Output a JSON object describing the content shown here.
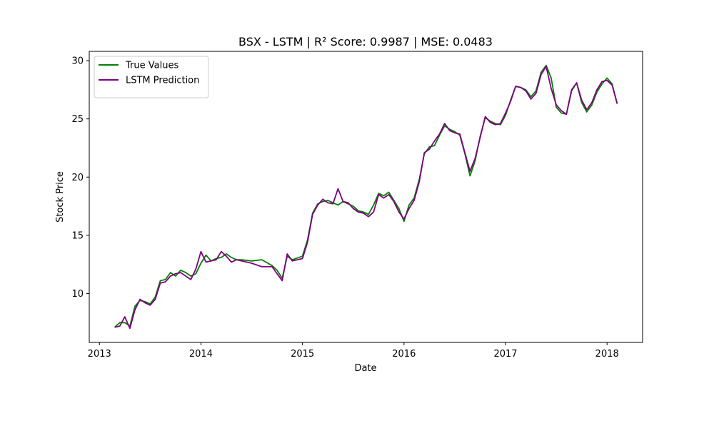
{
  "chart_data": {
    "type": "line",
    "title": "BSX - LSTM | R² Score: 0.9987 | MSE: 0.0483",
    "xlabel": "Date",
    "ylabel": "Stock Price",
    "xlim": [
      2012.9,
      2018.35
    ],
    "ylim": [
      5.8,
      30.8
    ],
    "xticks": [
      2013,
      2014,
      2015,
      2016,
      2017,
      2018
    ],
    "yticks": [
      10,
      15,
      20,
      25,
      30
    ],
    "grid": false,
    "legend_position": "top-left",
    "series": [
      {
        "name": "True Values",
        "color": "#008000",
        "x": [
          2013.15,
          2013.2,
          2013.25,
          2013.3,
          2013.35,
          2013.4,
          2013.45,
          2013.5,
          2013.55,
          2013.6,
          2013.65,
          2013.7,
          2013.75,
          2013.8,
          2013.85,
          2013.9,
          2013.95,
          2014.0,
          2014.05,
          2014.1,
          2014.15,
          2014.2,
          2014.25,
          2014.3,
          2014.35,
          2014.4,
          2014.5,
          2014.6,
          2014.7,
          2014.75,
          2014.8,
          2014.85,
          2014.9,
          2015.0,
          2015.05,
          2015.1,
          2015.15,
          2015.2,
          2015.25,
          2015.3,
          2015.35,
          2015.4,
          2015.45,
          2015.5,
          2015.55,
          2015.6,
          2015.65,
          2015.7,
          2015.75,
          2015.8,
          2015.85,
          2015.9,
          2015.95,
          2016.0,
          2016.05,
          2016.1,
          2016.15,
          2016.2,
          2016.25,
          2016.3,
          2016.35,
          2016.4,
          2016.45,
          2016.5,
          2016.55,
          2016.6,
          2016.65,
          2016.7,
          2016.75,
          2016.8,
          2016.85,
          2016.9,
          2016.95,
          2017.0,
          2017.05,
          2017.1,
          2017.15,
          2017.2,
          2017.25,
          2017.3,
          2017.35,
          2017.4,
          2017.45,
          2017.5,
          2017.55,
          2017.6,
          2017.65,
          2017.7,
          2017.75,
          2017.8,
          2017.85,
          2017.9,
          2017.95,
          2018.0,
          2018.05,
          2018.1
        ],
        "values": [
          7.1,
          7.5,
          7.5,
          7.2,
          8.9,
          9.4,
          9.3,
          9.1,
          9.7,
          11.1,
          11.2,
          11.8,
          11.5,
          12.0,
          11.8,
          11.5,
          11.7,
          12.6,
          13.3,
          12.8,
          13.0,
          13.1,
          13.4,
          13.1,
          12.9,
          12.9,
          12.8,
          12.9,
          12.4,
          12.0,
          11.3,
          13.2,
          12.9,
          13.2,
          14.6,
          16.9,
          17.7,
          17.9,
          18.0,
          17.8,
          17.6,
          17.9,
          17.7,
          17.5,
          17.1,
          17.0,
          16.8,
          17.6,
          18.6,
          18.4,
          18.7,
          18.0,
          17.3,
          16.2,
          17.6,
          18.2,
          19.8,
          22.0,
          22.6,
          22.7,
          23.6,
          24.4,
          24.1,
          23.9,
          23.6,
          22.0,
          20.1,
          21.4,
          23.5,
          25.1,
          24.8,
          24.6,
          24.5,
          25.3,
          26.6,
          27.8,
          27.7,
          27.5,
          26.9,
          27.4,
          29.0,
          29.6,
          28.5,
          26.0,
          25.5,
          25.4,
          27.4,
          28.1,
          26.4,
          25.6,
          26.2,
          27.3,
          28.0,
          28.5,
          28.0,
          26.3
        ]
      },
      {
        "name": "LSTM Prediction",
        "color": "#800080",
        "x": [
          2013.15,
          2013.2,
          2013.25,
          2013.3,
          2013.35,
          2013.4,
          2013.45,
          2013.5,
          2013.55,
          2013.6,
          2013.65,
          2013.7,
          2013.75,
          2013.8,
          2013.85,
          2013.9,
          2013.95,
          2014.0,
          2014.05,
          2014.1,
          2014.15,
          2014.2,
          2014.25,
          2014.3,
          2014.35,
          2014.4,
          2014.5,
          2014.6,
          2014.7,
          2014.75,
          2014.8,
          2014.85,
          2014.9,
          2015.0,
          2015.05,
          2015.1,
          2015.15,
          2015.2,
          2015.25,
          2015.3,
          2015.35,
          2015.4,
          2015.45,
          2015.5,
          2015.55,
          2015.6,
          2015.65,
          2015.7,
          2015.75,
          2015.8,
          2015.85,
          2015.9,
          2015.95,
          2016.0,
          2016.05,
          2016.1,
          2016.15,
          2016.2,
          2016.25,
          2016.3,
          2016.35,
          2016.4,
          2016.45,
          2016.5,
          2016.55,
          2016.6,
          2016.65,
          2016.7,
          2016.75,
          2016.8,
          2016.85,
          2016.9,
          2016.95,
          2017.0,
          2017.05,
          2017.1,
          2017.15,
          2017.2,
          2017.25,
          2017.3,
          2017.35,
          2017.4,
          2017.45,
          2017.5,
          2017.55,
          2017.6,
          2017.65,
          2017.7,
          2017.75,
          2017.8,
          2017.85,
          2017.9,
          2017.95,
          2018.0,
          2018.05,
          2018.1
        ],
        "values": [
          7.1,
          7.2,
          8.0,
          7.0,
          8.6,
          9.5,
          9.2,
          9.0,
          9.5,
          10.9,
          11.0,
          11.5,
          11.7,
          11.8,
          11.5,
          11.2,
          12.1,
          13.6,
          12.7,
          12.8,
          12.9,
          13.6,
          13.2,
          12.7,
          12.9,
          12.8,
          12.6,
          12.3,
          12.3,
          11.7,
          11.1,
          13.4,
          12.8,
          13.0,
          14.4,
          16.8,
          17.6,
          18.1,
          17.8,
          17.7,
          19.0,
          17.9,
          17.8,
          17.3,
          17.0,
          16.9,
          16.6,
          17.0,
          18.5,
          18.2,
          18.5,
          17.9,
          17.0,
          16.4,
          17.3,
          18.0,
          19.6,
          22.1,
          22.4,
          23.1,
          23.7,
          24.6,
          24.0,
          23.8,
          23.7,
          22.1,
          20.5,
          21.6,
          23.4,
          25.2,
          24.7,
          24.5,
          24.6,
          25.5,
          26.5,
          27.8,
          27.7,
          27.4,
          26.7,
          27.2,
          28.8,
          29.5,
          27.6,
          26.2,
          25.7,
          25.4,
          27.5,
          28.1,
          26.6,
          25.8,
          26.4,
          27.5,
          28.2,
          28.3,
          27.9,
          26.3
        ]
      }
    ]
  }
}
